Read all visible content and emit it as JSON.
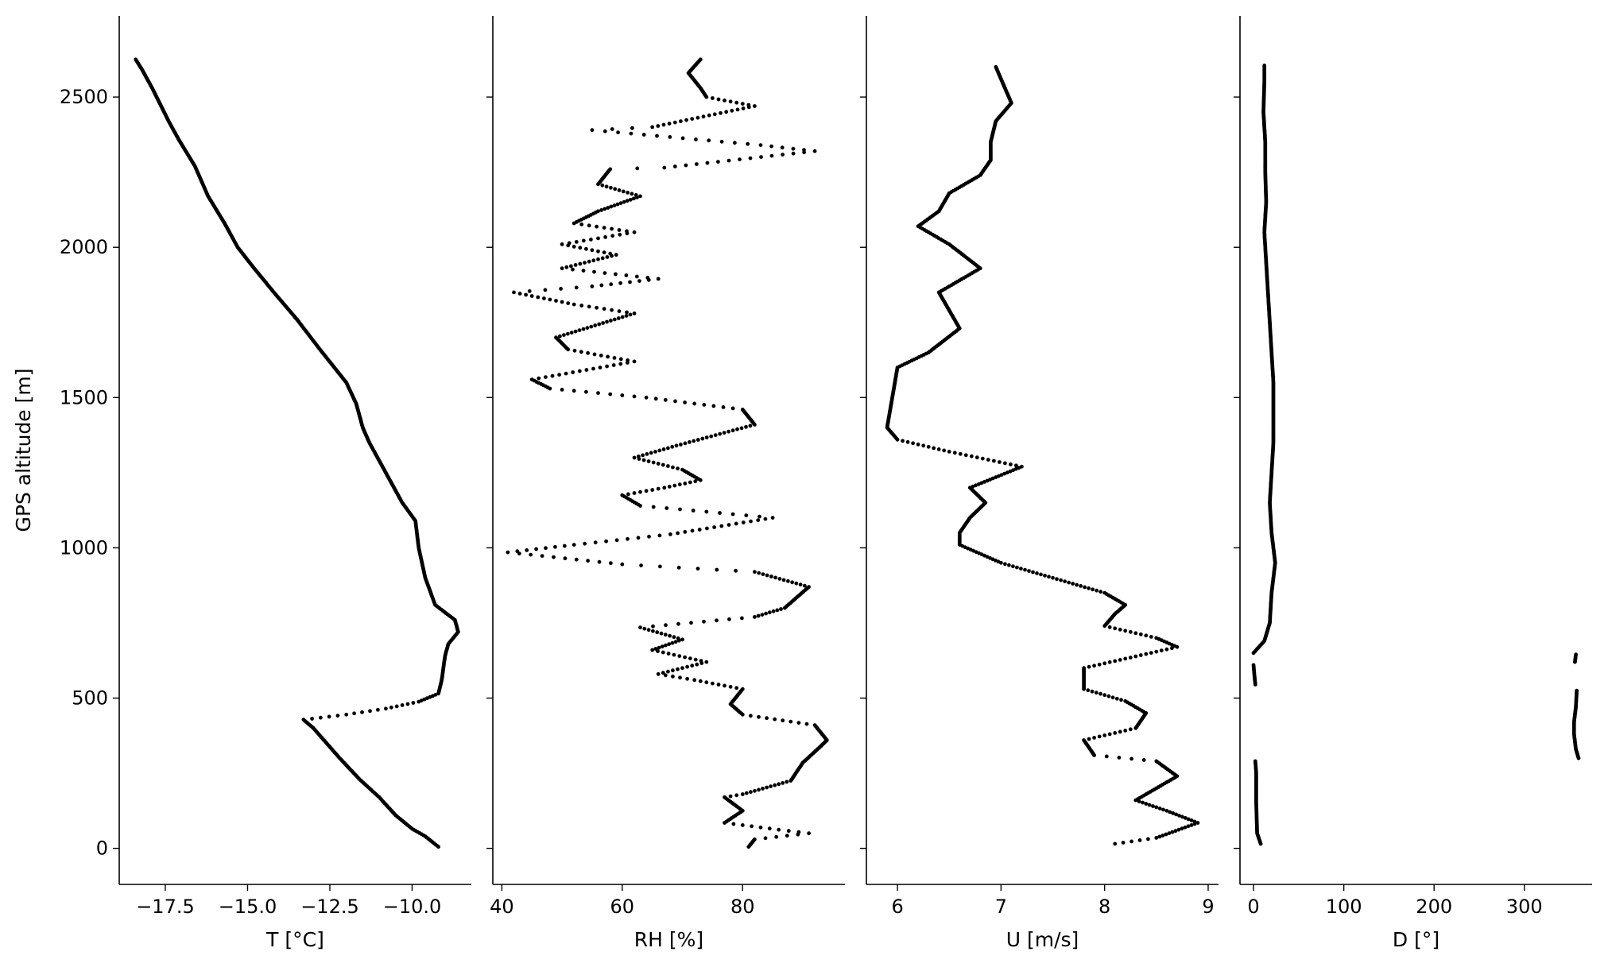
{
  "figure": {
    "background": "#ffffff",
    "point_color": "#000000"
  },
  "chart_data": [
    {
      "type": "scatter",
      "xlabel": "T [°C]",
      "ylabel": "GPS altitude [m]",
      "xlim": [
        -18.9,
        -8.2
      ],
      "ylim": [
        -120,
        2770
      ],
      "xticks": [
        -17.5,
        -15.0,
        -12.5,
        -10.0
      ],
      "xtick_labels": [
        "−17.5",
        "−15.0",
        "−12.5",
        "−10.0"
      ],
      "yticks": [
        0,
        500,
        1000,
        1500,
        2000,
        2500
      ],
      "ytick_labels": [
        "0",
        "500",
        "1000",
        "1500",
        "2000",
        "2500"
      ],
      "series": [
        {
          "profile": [
            [
              -9.2,
              5
            ],
            [
              -9.6,
              40
            ],
            [
              -10.0,
              65
            ],
            [
              -10.5,
              110
            ],
            [
              -11.0,
              170
            ],
            [
              -11.6,
              230
            ],
            [
              -12.2,
              300
            ],
            [
              -12.6,
              350
            ],
            [
              -13.0,
              400
            ],
            [
              -13.3,
              428
            ],
            [
              -12.0,
              445
            ],
            [
              -10.8,
              465
            ],
            [
              -9.8,
              488
            ],
            [
              -9.2,
              515
            ],
            [
              -9.1,
              560
            ],
            [
              -9.0,
              640
            ],
            [
              -8.9,
              680
            ],
            [
              -8.6,
              720
            ],
            [
              -8.7,
              760
            ],
            [
              -9.3,
              810
            ],
            [
              -9.6,
              900
            ],
            [
              -9.8,
              1000
            ],
            [
              -9.9,
              1090
            ],
            [
              -10.3,
              1150
            ],
            [
              -10.8,
              1250
            ],
            [
              -11.3,
              1350
            ],
            [
              -11.5,
              1400
            ],
            [
              -11.7,
              1480
            ],
            [
              -12.0,
              1550
            ],
            [
              -12.8,
              1660
            ],
            [
              -13.5,
              1760
            ],
            [
              -14.2,
              1850
            ],
            [
              -14.8,
              1930
            ],
            [
              -15.3,
              2000
            ],
            [
              -15.7,
              2080
            ],
            [
              -16.2,
              2170
            ],
            [
              -16.6,
              2270
            ],
            [
              -17.1,
              2360
            ],
            [
              -17.4,
              2420
            ],
            [
              -17.9,
              2530
            ],
            [
              -18.2,
              2590
            ],
            [
              -18.4,
              2625
            ]
          ]
        }
      ]
    },
    {
      "type": "scatter",
      "xlabel": "RH [%]",
      "xlim": [
        38.5,
        97
      ],
      "ylim": [
        -120,
        2770
      ],
      "xticks": [
        40,
        60,
        80
      ],
      "xtick_labels": [
        "40",
        "60",
        "80"
      ],
      "yticks": [
        0,
        500,
        1000,
        1500,
        2000,
        2500
      ],
      "series": [
        {
          "profile": [
            [
              81,
              5
            ],
            [
              82,
              30
            ],
            [
              91,
              50
            ],
            [
              86,
              62
            ],
            [
              77,
              85
            ],
            [
              80,
              125
            ],
            [
              77,
              170
            ],
            [
              80,
              180
            ],
            [
              88,
              225
            ],
            [
              90,
              285
            ],
            [
              93,
              340
            ],
            [
              94,
              360
            ],
            [
              92,
              410
            ],
            [
              80,
              445
            ],
            [
              78,
              480
            ],
            [
              80,
              530
            ],
            [
              72,
              560
            ],
            [
              66,
              580
            ],
            [
              74,
              620
            ],
            [
              65,
              660
            ],
            [
              70,
              695
            ],
            [
              63,
              735
            ],
            [
              82,
              770
            ],
            [
              87,
              800
            ],
            [
              91,
              870
            ],
            [
              82,
              920
            ],
            [
              60,
              945
            ],
            [
              41,
              985
            ],
            [
              52,
              1010
            ],
            [
              68,
              1045
            ],
            [
              85,
              1100
            ],
            [
              63,
              1140
            ],
            [
              60,
              1175
            ],
            [
              67,
              1200
            ],
            [
              73,
              1225
            ],
            [
              70,
              1260
            ],
            [
              62,
              1300
            ],
            [
              69,
              1340
            ],
            [
              82,
              1410
            ],
            [
              80,
              1460
            ],
            [
              64,
              1500
            ],
            [
              48,
              1530
            ],
            [
              45,
              1560
            ],
            [
              62,
              1620
            ],
            [
              51,
              1660
            ],
            [
              49,
              1700
            ],
            [
              62,
              1780
            ],
            [
              52,
              1810
            ],
            [
              42,
              1850
            ],
            [
              55,
              1870
            ],
            [
              66,
              1895
            ],
            [
              50,
              1930
            ],
            [
              59,
              1975
            ],
            [
              50,
              2010
            ],
            [
              62,
              2050
            ],
            [
              52,
              2080
            ],
            [
              56,
              2120
            ],
            [
              63,
              2170
            ],
            [
              56,
              2210
            ],
            [
              58,
              2260
            ],
            [
              67,
              2265
            ],
            [
              92,
              2320
            ],
            [
              83,
              2340
            ],
            [
              55,
              2390
            ],
            [
              65,
              2400
            ],
            [
              82,
              2470
            ],
            [
              74,
              2500
            ],
            [
              73,
              2530
            ],
            [
              71,
              2580
            ],
            [
              73,
              2625
            ]
          ]
        }
      ]
    },
    {
      "type": "scatter",
      "xlabel": "U [m/s]",
      "xlim": [
        5.7,
        9.1
      ],
      "ylim": [
        -120,
        2770
      ],
      "xticks": [
        6,
        7,
        8,
        9
      ],
      "xtick_labels": [
        "6",
        "7",
        "8",
        "9"
      ],
      "yticks": [
        0,
        500,
        1000,
        1500,
        2000,
        2500
      ],
      "series": [
        {
          "profile": [
            [
              8.1,
              15
            ],
            [
              8.5,
              35
            ],
            [
              8.9,
              85
            ],
            [
              8.6,
              125
            ],
            [
              8.3,
              160
            ],
            [
              8.7,
              240
            ],
            [
              8.5,
              290
            ],
            [
              7.9,
              310
            ],
            [
              7.8,
              360
            ],
            [
              8.3,
              400
            ],
            [
              8.4,
              450
            ],
            [
              8.2,
              490
            ],
            [
              7.8,
              530
            ],
            [
              7.8,
              600
            ],
            [
              8.7,
              670
            ],
            [
              8.5,
              700
            ],
            [
              8.0,
              740
            ],
            [
              8.1,
              780
            ],
            [
              8.2,
              810
            ],
            [
              8.0,
              850
            ],
            [
              7.5,
              900
            ],
            [
              7.0,
              950
            ],
            [
              6.6,
              1010
            ],
            [
              6.6,
              1050
            ],
            [
              6.7,
              1100
            ],
            [
              6.85,
              1150
            ],
            [
              6.7,
              1200
            ],
            [
              7.2,
              1270
            ],
            [
              6.5,
              1320
            ],
            [
              6.0,
              1360
            ],
            [
              5.9,
              1400
            ],
            [
              5.95,
              1500
            ],
            [
              6.0,
              1600
            ],
            [
              6.3,
              1650
            ],
            [
              6.6,
              1730
            ],
            [
              6.5,
              1790
            ],
            [
              6.4,
              1850
            ],
            [
              6.8,
              1930
            ],
            [
              6.5,
              2010
            ],
            [
              6.2,
              2070
            ],
            [
              6.4,
              2120
            ],
            [
              6.5,
              2180
            ],
            [
              6.8,
              2240
            ],
            [
              6.9,
              2290
            ],
            [
              6.9,
              2350
            ],
            [
              6.95,
              2420
            ],
            [
              7.1,
              2480
            ],
            [
              7.0,
              2560
            ],
            [
              6.95,
              2600
            ]
          ]
        }
      ]
    },
    {
      "type": "scatter",
      "xlabel": "D [°]",
      "xlim": [
        -15,
        375
      ],
      "ylim": [
        -120,
        2770
      ],
      "xticks": [
        0,
        100,
        200,
        300
      ],
      "xtick_labels": [
        "0",
        "100",
        "200",
        "300"
      ],
      "yticks": [
        0,
        500,
        1000,
        1500,
        2000,
        2500
      ],
      "series": [
        {
          "segments": [
            [
              [
                8,
                15
              ],
              [
                4,
                50
              ],
              [
                3,
                150
              ],
              [
                3,
                250
              ],
              [
                2,
                290
              ]
            ],
            [
              [
                2,
                545
              ],
              [
                1,
                575
              ],
              [
                0,
                610
              ]
            ],
            [
              [
                0,
                650
              ],
              [
                12,
                690
              ],
              [
                18,
                750
              ],
              [
                20,
                850
              ],
              [
                24,
                950
              ],
              [
                20,
                1050
              ],
              [
                18,
                1150
              ],
              [
                20,
                1250
              ],
              [
                22,
                1350
              ],
              [
                22,
                1450
              ],
              [
                22,
                1550
              ],
              [
                20,
                1650
              ],
              [
                18,
                1750
              ],
              [
                16,
                1850
              ],
              [
                14,
                1950
              ],
              [
                12,
                2050
              ],
              [
                14,
                2150
              ],
              [
                13,
                2250
              ],
              [
                13,
                2350
              ],
              [
                11,
                2450
              ],
              [
                12,
                2550
              ],
              [
                12,
                2605
              ]
            ],
            [
              [
                360,
                300
              ],
              [
                357,
                330
              ],
              [
                355,
                380
              ],
              [
                355,
                420
              ],
              [
                357,
                470
              ],
              [
                358,
                525
              ]
            ],
            [
              [
                356,
                620
              ],
              [
                357,
                645
              ]
            ]
          ]
        }
      ]
    }
  ]
}
